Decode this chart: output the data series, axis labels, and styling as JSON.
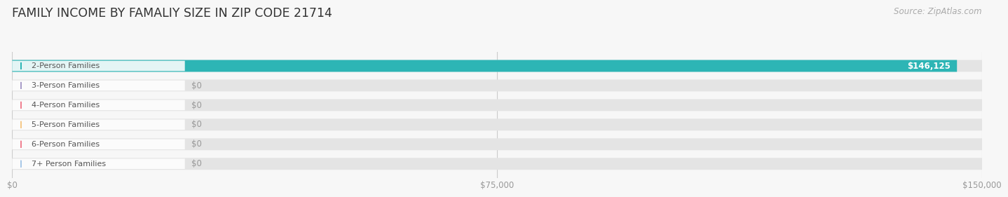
{
  "title": "FAMILY INCOME BY FAMALIY SIZE IN ZIP CODE 21714",
  "source_text": "Source: ZipAtlas.com",
  "categories": [
    "2-Person Families",
    "3-Person Families",
    "4-Person Families",
    "5-Person Families",
    "6-Person Families",
    "7+ Person Families"
  ],
  "values": [
    146125,
    0,
    0,
    0,
    0,
    0
  ],
  "bar_colors": [
    "#2db5b5",
    "#a89cc8",
    "#f08090",
    "#f5c888",
    "#f08090",
    "#a8c8e8"
  ],
  "xmax": 150000,
  "xticks": [
    0,
    75000,
    150000
  ],
  "xtick_labels": [
    "$0",
    "$75,000",
    "$150,000"
  ],
  "background_color": "#f7f7f7",
  "bar_bg_color": "#e4e4e4",
  "title_fontsize": 12.5,
  "source_fontsize": 8.5,
  "label_fontsize": 8,
  "value_fontsize": 8.5,
  "bar_height": 0.6,
  "value_label": "$146,125"
}
